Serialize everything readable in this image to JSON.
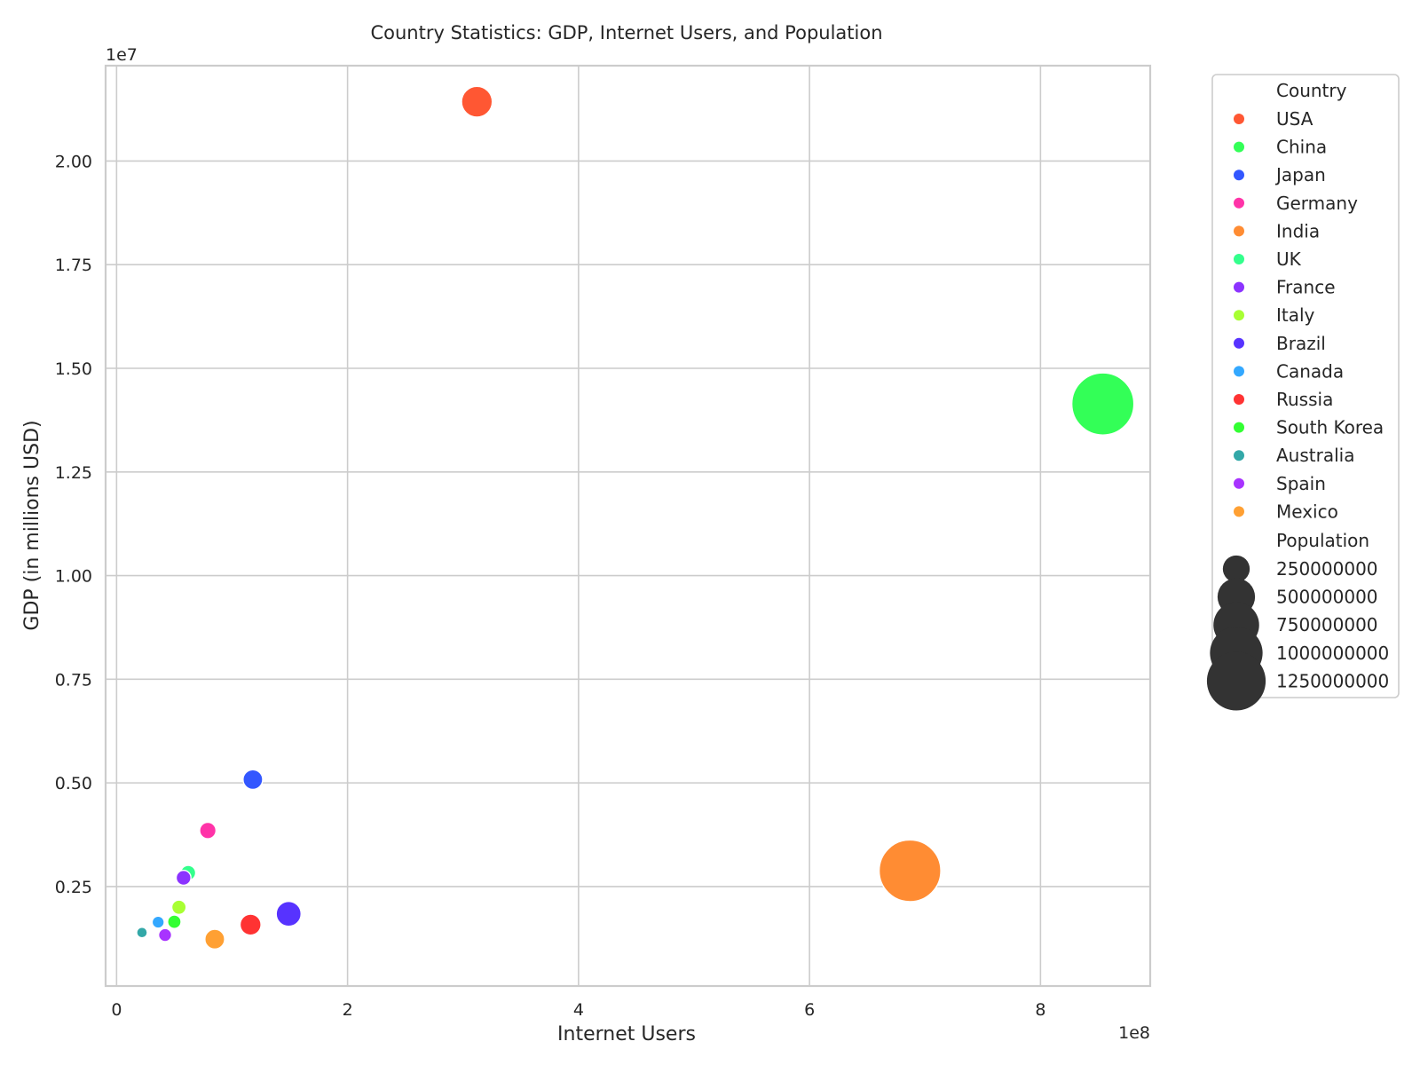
{
  "chart_data": {
    "type": "scatter",
    "title": "Country Statistics: GDP, Internet Users, and Population",
    "xlabel": "Internet Users",
    "ylabel": "GDP (in millions USD)",
    "x_offset_label": "1e8",
    "y_offset_label": "1e7",
    "xlim": [
      -9500000,
      895000000
    ],
    "ylim": [
      100000,
      22300000
    ],
    "x_ticks": [
      {
        "value": 0,
        "label": "0"
      },
      {
        "value": 200000000,
        "label": "2"
      },
      {
        "value": 400000000,
        "label": "4"
      },
      {
        "value": 600000000,
        "label": "6"
      },
      {
        "value": 800000000,
        "label": "8"
      }
    ],
    "y_ticks": [
      {
        "value": 2500000,
        "label": "0.25"
      },
      {
        "value": 5000000,
        "label": "0.50"
      },
      {
        "value": 7500000,
        "label": "0.75"
      },
      {
        "value": 10000000,
        "label": "1.00"
      },
      {
        "value": 12500000,
        "label": "1.25"
      },
      {
        "value": 15000000,
        "label": "1.50"
      },
      {
        "value": 17500000,
        "label": "1.75"
      },
      {
        "value": 20000000,
        "label": "2.00"
      }
    ],
    "grid": true,
    "legend_position": "outside-right",
    "hue_title": "Country",
    "size_title": "Population",
    "series": [
      {
        "name": "USA",
        "x": 312000000,
        "y": 21430000,
        "population": 331000000,
        "color": "#ff5733"
      },
      {
        "name": "China",
        "x": 854000000,
        "y": 14140000,
        "population": 1400000000,
        "color": "#33ff57"
      },
      {
        "name": "Japan",
        "x": 118000000,
        "y": 5080000,
        "population": 126000000,
        "color": "#3357ff"
      },
      {
        "name": "Germany",
        "x": 79000000,
        "y": 3850000,
        "population": 83000000,
        "color": "#ff33a8"
      },
      {
        "name": "India",
        "x": 687000000,
        "y": 2880000,
        "population": 1380000000,
        "color": "#ff8c33"
      },
      {
        "name": "UK",
        "x": 62000000,
        "y": 2830000,
        "population": 67000000,
        "color": "#33ff8c"
      },
      {
        "name": "France",
        "x": 58000000,
        "y": 2710000,
        "population": 65000000,
        "color": "#8c33ff"
      },
      {
        "name": "Italy",
        "x": 54000000,
        "y": 2000000,
        "population": 60000000,
        "color": "#a8ff33"
      },
      {
        "name": "Brazil",
        "x": 149000000,
        "y": 1840000,
        "population": 212000000,
        "color": "#5733ff"
      },
      {
        "name": "Canada",
        "x": 36000000,
        "y": 1640000,
        "population": 38000000,
        "color": "#33a8ff"
      },
      {
        "name": "Russia",
        "x": 116000000,
        "y": 1580000,
        "population": 146000000,
        "color": "#ff3333"
      },
      {
        "name": "South Korea",
        "x": 50000000,
        "y": 1650000,
        "population": 51000000,
        "color": "#33ff33"
      },
      {
        "name": "Australia",
        "x": 22000000,
        "y": 1390000,
        "population": 26000000,
        "color": "#33a8a8"
      },
      {
        "name": "Spain",
        "x": 42000000,
        "y": 1330000,
        "population": 47000000,
        "color": "#a833ff"
      },
      {
        "name": "Mexico",
        "x": 85000000,
        "y": 1230000,
        "population": 128000000,
        "color": "#ffa033"
      }
    ],
    "size_legend": [
      {
        "value": 250000000,
        "label": "250000000"
      },
      {
        "value": 500000000,
        "label": "500000000"
      },
      {
        "value": 750000000,
        "label": "750000000"
      },
      {
        "value": 1000000000,
        "label": "1000000000"
      },
      {
        "value": 1250000000,
        "label": "1250000000"
      }
    ],
    "size_legend_color": "#333333"
  }
}
